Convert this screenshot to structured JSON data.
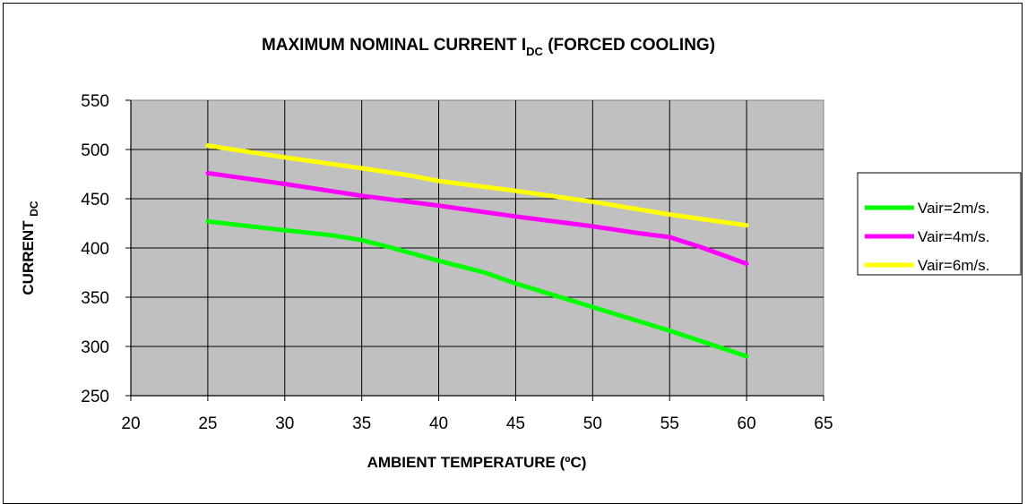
{
  "chart_data": {
    "type": "line",
    "title": "MAXIMUM NOMINAL CURRENT I",
    "title_subscript": "DC",
    "title_suffix": " (FORCED COOLING)",
    "xlabel": "AMBIENT TEMPERATURE (ºC)",
    "ylabel": "CURRENT ",
    "ylabel_subscript": "DC",
    "xlim": [
      20,
      65
    ],
    "ylim": [
      250,
      550
    ],
    "xticks": [
      "20",
      "25",
      "30",
      "35",
      "40",
      "45",
      "50",
      "55",
      "60",
      "65"
    ],
    "yticks": [
      "250",
      "300",
      "350",
      "400",
      "450",
      "500",
      "550"
    ],
    "grid": true,
    "plot_background": "#c0c0c0",
    "legend_position": "right",
    "series": [
      {
        "name": "Vair=2m/s.",
        "color": "#00ff00",
        "x": [
          25,
          30,
          33,
          35,
          37,
          40,
          43,
          45,
          50,
          55,
          60
        ],
        "y": [
          427,
          418,
          413,
          408,
          400,
          387,
          375,
          364,
          340,
          316,
          290
        ]
      },
      {
        "name": "Vair=4m/s.",
        "color": "#ff00ff",
        "x": [
          25,
          30,
          35,
          40,
          45,
          50,
          53,
          55,
          57,
          60
        ],
        "y": [
          476,
          465,
          453,
          443,
          432,
          422,
          415,
          411,
          401,
          384
        ]
      },
      {
        "name": "Vair=6m/s.",
        "color": "#ffff00",
        "x": [
          25,
          30,
          35,
          38,
          40,
          45,
          50,
          55,
          60
        ],
        "y": [
          504,
          492,
          481,
          474,
          468,
          458,
          447,
          434,
          423
        ]
      }
    ]
  }
}
